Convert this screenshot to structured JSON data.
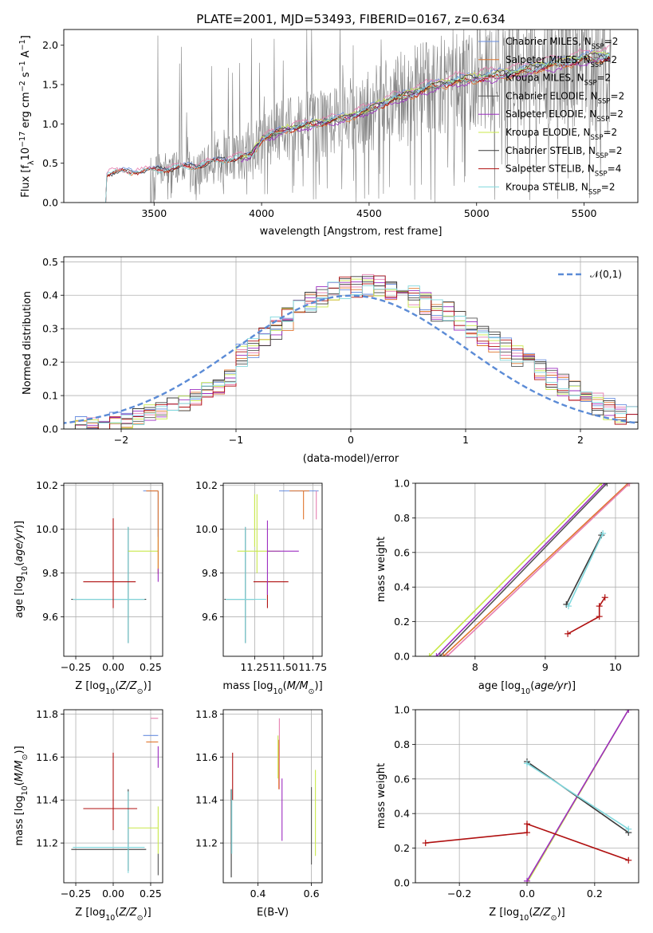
{
  "title": "PLATE=2001, MJD=53493, FIBERID=0167, z=0.634",
  "colors": {
    "chabrier_miles": "#6a8fe0",
    "salpeter_miles": "#e0762e",
    "kroupa_miles": "#e67fb0",
    "chabrier_elodie": "#555555",
    "salpeter_elodie": "#9c2cc0",
    "kroupa_elodie": "#c8e84a",
    "chabrier_stelib": "#3a3a3a",
    "salpeter_stelib": "#b01010",
    "kroupa_stelib": "#80d8dd",
    "data": "#808080",
    "gauss": "#5b8bd6"
  },
  "chart_data": [
    {
      "id": "spectrum",
      "type": "line",
      "title": "PLATE=2001, MJD=53493, FIBERID=0167, z=0.634",
      "xlabel": "wavelength [Angstrom, rest frame]",
      "ylabel": "Flux [f_λ10^-17 erg cm^-2 s^-1 A^-1]",
      "xlim": [
        3080,
        5750
      ],
      "ylim": [
        0,
        2.2
      ],
      "xticks": [
        "3500",
        "4000",
        "4500",
        "5000",
        "5500"
      ],
      "yticks": [
        "0.0",
        "0.5",
        "1.0",
        "1.5",
        "2.0"
      ],
      "legend_position": "top-right",
      "legend": [
        {
          "prefix": "Chabrier MILES, N",
          "sub": "SSP",
          "suffix": "=2",
          "color_key": "chabrier_miles"
        },
        {
          "prefix": "Salpeter MILES, N",
          "sub": "SSP",
          "suffix": "=2",
          "color_key": "salpeter_miles"
        },
        {
          "prefix": "Kroupa MILES, N",
          "sub": "SSP",
          "suffix": "=2",
          "color_key": "kroupa_miles"
        },
        {
          "prefix": "Chabrier ELODIE, N",
          "sub": "SSP",
          "suffix": "=2",
          "color_key": "chabrier_elodie"
        },
        {
          "prefix": "Salpeter ELODIE, N",
          "sub": "SSP",
          "suffix": "=2",
          "color_key": "salpeter_elodie"
        },
        {
          "prefix": "Kroupa ELODIE, N",
          "sub": "SSP",
          "suffix": "=2",
          "color_key": "kroupa_elodie"
        },
        {
          "prefix": "Chabrier STELIB, N",
          "sub": "SSP",
          "suffix": "=2",
          "color_key": "chabrier_stelib"
        },
        {
          "prefix": "Salpeter STELIB, N",
          "sub": "SSP",
          "suffix": "=4",
          "color_key": "salpeter_stelib"
        },
        {
          "prefix": "Kroupa STELIB, N",
          "sub": "SSP",
          "suffix": "=2",
          "color_key": "kroupa_stelib"
        }
      ],
      "model_start_wavelength": 3280,
      "model_continuum": [
        [
          3280,
          0.37
        ],
        [
          3350,
          0.39
        ],
        [
          3500,
          0.41
        ],
        [
          3600,
          0.44
        ],
        [
          3700,
          0.47
        ],
        [
          3800,
          0.53
        ],
        [
          3900,
          0.57
        ],
        [
          3950,
          0.6
        ],
        [
          4000,
          0.8
        ],
        [
          4100,
          0.92
        ],
        [
          4200,
          0.97
        ],
        [
          4300,
          1.03
        ],
        [
          4400,
          1.08
        ],
        [
          4500,
          1.18
        ],
        [
          4600,
          1.3
        ],
        [
          4700,
          1.38
        ],
        [
          4800,
          1.48
        ],
        [
          4900,
          1.54
        ],
        [
          5000,
          1.58
        ],
        [
          5100,
          1.62
        ],
        [
          5200,
          1.66
        ],
        [
          5300,
          1.73
        ],
        [
          5400,
          1.77
        ],
        [
          5500,
          1.83
        ],
        [
          5620,
          1.86
        ]
      ]
    },
    {
      "id": "residuals",
      "type": "histogram",
      "xlabel": "(data-model)/error",
      "ylabel": "Normed distribution",
      "xlim": [
        -2.5,
        2.5
      ],
      "ylim": [
        0,
        0.515
      ],
      "xticks": [
        "-2",
        "-1",
        "0",
        "1",
        "2"
      ],
      "yticks": [
        "0.0",
        "0.1",
        "0.2",
        "0.3",
        "0.4",
        "0.5"
      ],
      "grid": true,
      "legend_position": "top-right",
      "gauss_label": "𝒩(0,1)",
      "bin_width": 0.1
    },
    {
      "id": "age-vs-z",
      "type": "errorbar",
      "xlabel": "Z [log10(Z/Z⊙)]",
      "ylabel": "age  [log10(age/yr)]",
      "xlim": [
        -0.33,
        0.33
      ],
      "ylim": [
        9.42,
        10.21
      ],
      "xticks": [
        "-0.25",
        "0.00",
        "0.25"
      ],
      "yticks": [
        "9.6",
        "9.8",
        "10.0",
        "10.2"
      ]
    },
    {
      "id": "age-vs-mass",
      "type": "errorbar",
      "xlabel": "mass [log10(M/M⊙)]",
      "ylabel": "",
      "xlim": [
        10.98,
        11.83
      ],
      "ylim": [
        9.42,
        10.21
      ],
      "xticks": [
        "11.25",
        "11.50",
        "11.75"
      ],
      "yticks": [
        "9.6",
        "9.8",
        "10.0",
        "10.2"
      ]
    },
    {
      "id": "mw-vs-age",
      "type": "line",
      "xlabel": "age  [log10(age/yr)]",
      "ylabel": "mass weight",
      "xlim": [
        7.15,
        10.33
      ],
      "ylim": [
        0,
        1
      ],
      "xticks": [
        "8",
        "9",
        "10"
      ],
      "yticks": [
        "0.0",
        "0.2",
        "0.4",
        "0.6",
        "0.8",
        "1.0"
      ],
      "grid": true,
      "series": [
        {
          "color_key": "kroupa_elodie",
          "x": [
            7.35,
            9.8
          ],
          "y": [
            0.0,
            1.0
          ]
        },
        {
          "color_key": "salpeter_elodie",
          "x": [
            7.45,
            9.85
          ],
          "y": [
            0.0,
            1.0
          ]
        },
        {
          "color_key": "chabrier_elodie",
          "x": [
            7.5,
            9.88
          ],
          "y": [
            0.0,
            1.0
          ]
        },
        {
          "color_key": "salpeter_miles",
          "x": [
            7.55,
            10.18
          ],
          "y": [
            0.0,
            1.0
          ]
        },
        {
          "color_key": "kroupa_miles",
          "x": [
            7.6,
            10.2
          ],
          "y": [
            0.0,
            1.0
          ]
        },
        {
          "color_key": "chabrier_stelib",
          "x": [
            9.3,
            9.8
          ],
          "y": [
            0.3,
            0.7
          ]
        },
        {
          "color_key": "kroupa_stelib",
          "x": [
            9.33,
            9.82
          ],
          "y": [
            0.29,
            0.71
          ]
        },
        {
          "color_key": "salpeter_stelib",
          "x": [
            9.32,
            9.77,
            9.77,
            9.85
          ],
          "y": [
            0.13,
            0.23,
            0.29,
            0.34
          ]
        }
      ]
    },
    {
      "id": "mass-vs-z",
      "type": "errorbar",
      "xlabel": "Z [log10(Z/Z⊙)]",
      "ylabel": "mass [log10(M/M⊙)]",
      "xlim": [
        -0.33,
        0.33
      ],
      "ylim": [
        11.015,
        11.82
      ],
      "xticks": [
        "-0.25",
        "0.00",
        "0.25"
      ],
      "yticks": [
        "11.2",
        "11.4",
        "11.6",
        "11.8"
      ]
    },
    {
      "id": "mass-vs-ebv",
      "type": "errorbar",
      "xlabel": "E(B-V)",
      "ylabel": "",
      "xlim": [
        0.27,
        0.64
      ],
      "ylim": [
        11.015,
        11.82
      ],
      "xticks": [
        "0.4",
        "0.6"
      ],
      "yticks": [
        "11.2",
        "11.4",
        "11.6",
        "11.8"
      ]
    },
    {
      "id": "mw-vs-z",
      "type": "line",
      "xlabel": "Z [log10(Z/Z⊙)]",
      "ylabel": "mass weight",
      "xlim": [
        -0.33,
        0.33
      ],
      "ylim": [
        0,
        1
      ],
      "xticks": [
        "-0.2",
        "0.0",
        "0.2"
      ],
      "yticks": [
        "0.0",
        "0.2",
        "0.4",
        "0.6",
        "0.8",
        "1.0"
      ],
      "grid": true,
      "series": [
        {
          "color_key": "kroupa_elodie",
          "x": [
            0.0,
            0.3
          ],
          "y": [
            0.0,
            1.0
          ]
        },
        {
          "color_key": "salpeter_elodie",
          "x": [
            0.0,
            0.3
          ],
          "y": [
            0.01,
            1.0
          ]
        },
        {
          "color_key": "chabrier_stelib",
          "x": [
            0.0,
            0.3
          ],
          "y": [
            0.7,
            0.29
          ]
        },
        {
          "color_key": "kroupa_stelib",
          "x": [
            0.0,
            0.3
          ],
          "y": [
            0.69,
            0.31
          ]
        },
        {
          "color_key": "salpeter_stelib",
          "x": [
            -0.3,
            0.0,
            0.0,
            0.3
          ],
          "y": [
            0.23,
            0.29,
            0.34,
            0.13
          ]
        }
      ]
    }
  ]
}
